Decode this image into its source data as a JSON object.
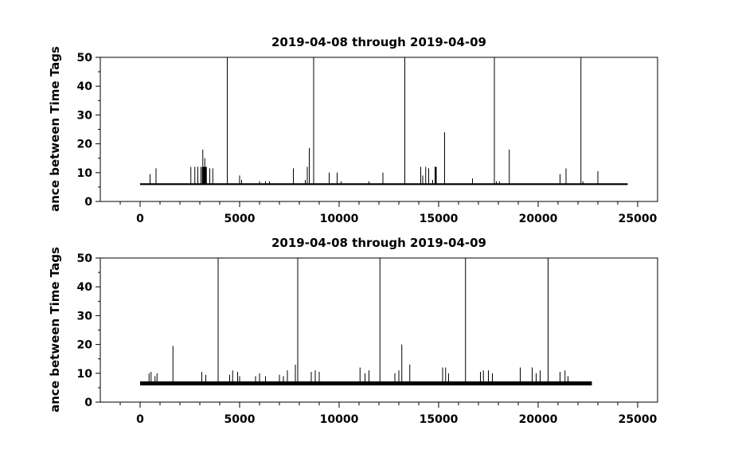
{
  "chart_data": [
    {
      "type": "line",
      "title": "2019-04-08 through 2019-04-09",
      "ylabel": "ance between Time Tags",
      "xlabel": "",
      "xlim": [
        -2000,
        26000
      ],
      "ylim": [
        0,
        50
      ],
      "xticks": [
        0,
        5000,
        10000,
        15000,
        20000,
        25000
      ],
      "xtick_labels": [
        "0",
        "5000",
        "10000",
        "15000",
        "20000",
        "25000"
      ],
      "yticks": [
        0,
        10,
        20,
        30,
        40,
        50
      ],
      "ytick_labels": [
        "0",
        "10",
        "20",
        "30",
        "40",
        "50"
      ],
      "x_end": 24500,
      "baseline": 6,
      "baseline_thickness": 0.6,
      "thick_blocks": [
        [
          3100,
          3350,
          12
        ],
        [
          14800,
          14900,
          12
        ]
      ],
      "spikes": [
        {
          "x": 500,
          "y": 9.5
        },
        {
          "x": 800,
          "y": 11.5
        },
        {
          "x": 2550,
          "y": 12
        },
        {
          "x": 2750,
          "y": 12
        },
        {
          "x": 2900,
          "y": 12
        },
        {
          "x": 3050,
          "y": 12
        },
        {
          "x": 3150,
          "y": 18
        },
        {
          "x": 3250,
          "y": 15
        },
        {
          "x": 3500,
          "y": 11.5
        },
        {
          "x": 3650,
          "y": 11.5
        },
        {
          "x": 4380,
          "y": 50
        },
        {
          "x": 5000,
          "y": 9
        },
        {
          "x": 5100,
          "y": 7.5
        },
        {
          "x": 6000,
          "y": 7
        },
        {
          "x": 6300,
          "y": 7
        },
        {
          "x": 6500,
          "y": 7
        },
        {
          "x": 7700,
          "y": 11.5
        },
        {
          "x": 8300,
          "y": 7.5
        },
        {
          "x": 8400,
          "y": 12
        },
        {
          "x": 8500,
          "y": 18.5
        },
        {
          "x": 8720,
          "y": 50
        },
        {
          "x": 9500,
          "y": 10
        },
        {
          "x": 9900,
          "y": 10
        },
        {
          "x": 10100,
          "y": 7
        },
        {
          "x": 11500,
          "y": 7
        },
        {
          "x": 12200,
          "y": 10
        },
        {
          "x": 13300,
          "y": 50
        },
        {
          "x": 14100,
          "y": 12
        },
        {
          "x": 14200,
          "y": 9
        },
        {
          "x": 14350,
          "y": 12
        },
        {
          "x": 14500,
          "y": 11.5
        },
        {
          "x": 14700,
          "y": 7.5
        },
        {
          "x": 15300,
          "y": 24
        },
        {
          "x": 16700,
          "y": 8
        },
        {
          "x": 17800,
          "y": 50
        },
        {
          "x": 17900,
          "y": 7
        },
        {
          "x": 18050,
          "y": 7
        },
        {
          "x": 18550,
          "y": 18
        },
        {
          "x": 21100,
          "y": 9.5
        },
        {
          "x": 21400,
          "y": 11.5
        },
        {
          "x": 22150,
          "y": 50
        },
        {
          "x": 22250,
          "y": 7
        },
        {
          "x": 23000,
          "y": 10.5
        }
      ]
    },
    {
      "type": "line",
      "title": "2019-04-08 through 2019-04-09",
      "ylabel": "ance between Time Tags",
      "xlabel": "",
      "xlim": [
        -2000,
        26000
      ],
      "ylim": [
        0,
        50
      ],
      "xticks": [
        0,
        5000,
        10000,
        15000,
        20000,
        25000
      ],
      "xtick_labels": [
        "0",
        "5000",
        "10000",
        "15000",
        "20000",
        "25000"
      ],
      "yticks": [
        0,
        10,
        20,
        30,
        40,
        50
      ],
      "ytick_labels": [
        "0",
        "10",
        "20",
        "30",
        "40",
        "50"
      ],
      "x_end": 22700,
      "baseline": 6.5,
      "baseline_thickness": 1.4,
      "thick_blocks": [],
      "spikes": [
        {
          "x": 450,
          "y": 10
        },
        {
          "x": 550,
          "y": 10.5
        },
        {
          "x": 750,
          "y": 9
        },
        {
          "x": 850,
          "y": 10
        },
        {
          "x": 1650,
          "y": 19.5
        },
        {
          "x": 3100,
          "y": 10.5
        },
        {
          "x": 3300,
          "y": 9.5
        },
        {
          "x": 3920,
          "y": 50
        },
        {
          "x": 4500,
          "y": 9.5
        },
        {
          "x": 4650,
          "y": 11
        },
        {
          "x": 4900,
          "y": 10.5
        },
        {
          "x": 5000,
          "y": 9
        },
        {
          "x": 5800,
          "y": 9
        },
        {
          "x": 6000,
          "y": 10
        },
        {
          "x": 6300,
          "y": 9
        },
        {
          "x": 7000,
          "y": 9.5
        },
        {
          "x": 7200,
          "y": 9
        },
        {
          "x": 7400,
          "y": 11
        },
        {
          "x": 7800,
          "y": 13
        },
        {
          "x": 7920,
          "y": 50
        },
        {
          "x": 8600,
          "y": 10.5
        },
        {
          "x": 8800,
          "y": 11
        },
        {
          "x": 9000,
          "y": 10.5
        },
        {
          "x": 11050,
          "y": 12
        },
        {
          "x": 11300,
          "y": 10
        },
        {
          "x": 11500,
          "y": 11
        },
        {
          "x": 12050,
          "y": 50
        },
        {
          "x": 12800,
          "y": 10
        },
        {
          "x": 13000,
          "y": 11
        },
        {
          "x": 13150,
          "y": 20
        },
        {
          "x": 13550,
          "y": 13
        },
        {
          "x": 15200,
          "y": 12
        },
        {
          "x": 15350,
          "y": 12
        },
        {
          "x": 15500,
          "y": 10
        },
        {
          "x": 16350,
          "y": 50
        },
        {
          "x": 17100,
          "y": 10.5
        },
        {
          "x": 17250,
          "y": 11
        },
        {
          "x": 17500,
          "y": 11
        },
        {
          "x": 17700,
          "y": 10
        },
        {
          "x": 19100,
          "y": 12
        },
        {
          "x": 19700,
          "y": 12
        },
        {
          "x": 19900,
          "y": 10
        },
        {
          "x": 20100,
          "y": 11
        },
        {
          "x": 20500,
          "y": 50
        },
        {
          "x": 21100,
          "y": 10.5
        },
        {
          "x": 21350,
          "y": 11
        },
        {
          "x": 21500,
          "y": 9
        }
      ]
    }
  ]
}
